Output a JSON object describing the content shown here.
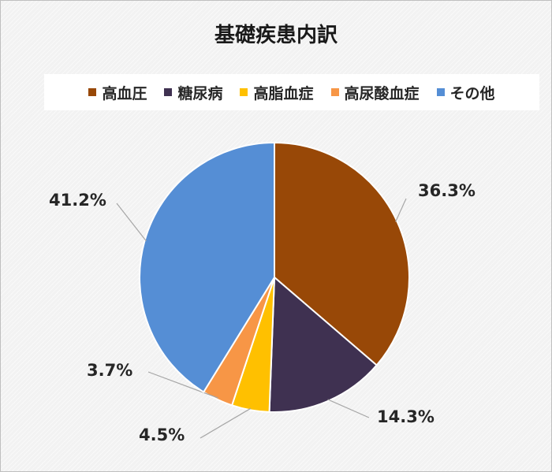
{
  "chart_data": {
    "type": "pie",
    "title": "基礎疾患内訳",
    "categories": [
      "高血圧",
      "糖尿病",
      "高脂血症",
      "高尿酸血症",
      "その他"
    ],
    "values": [
      36.3,
      14.3,
      4.5,
      3.7,
      41.2
    ],
    "value_labels": [
      "36.3%",
      "14.3%",
      "4.5%",
      "3.7%",
      "41.2%"
    ],
    "colors": [
      "#984807",
      "#3f3151",
      "#ffc000",
      "#f79646",
      "#558ed5"
    ],
    "legend_position": "top",
    "start_angle": "12 o'clock",
    "direction": "clockwise"
  }
}
